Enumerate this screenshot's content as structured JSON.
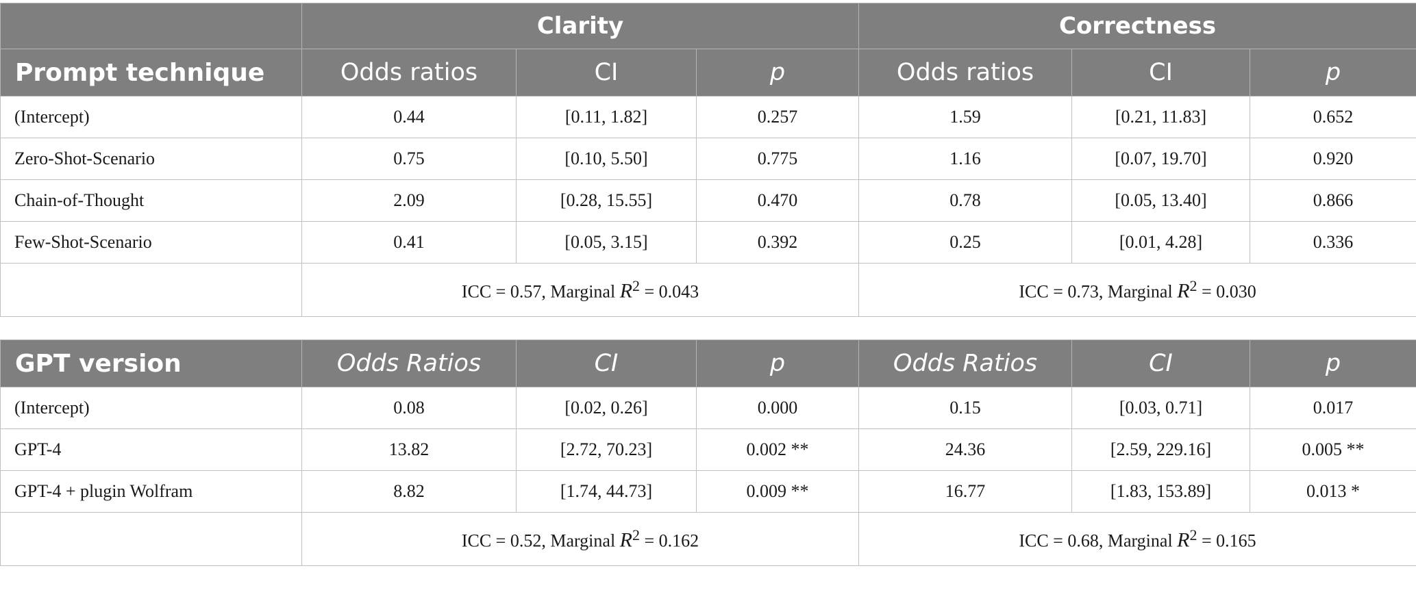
{
  "top": {
    "group_headers": [
      "Clarity",
      "Correctness"
    ],
    "first_header": "Prompt technique",
    "col_headers": [
      "Odds ratios",
      "CI",
      "p",
      "Odds ratios",
      "CI",
      "p"
    ],
    "rows": [
      {
        "label": "(Intercept)",
        "cells": [
          "0.44",
          "[0.11, 1.82]",
          "0.257",
          "1.59",
          "[0.21, 11.83]",
          "0.652"
        ]
      },
      {
        "label": "Zero-Shot-Scenario",
        "cells": [
          "0.75",
          "[0.10, 5.50]",
          "0.775",
          "1.16",
          "[0.07, 19.70]",
          "0.920"
        ]
      },
      {
        "label": "Chain-of-Thought",
        "cells": [
          "2.09",
          "[0.28, 15.55]",
          "0.470",
          "0.78",
          "[0.05, 13.40]",
          "0.866"
        ]
      },
      {
        "label": "Few-Shot-Scenario",
        "cells": [
          "0.41",
          "[0.05, 3.15]",
          "0.392",
          "0.25",
          "[0.01, 4.28]",
          "0.336"
        ]
      }
    ],
    "summary": [
      {
        "prefix": "ICC = 0.57, Marginal ",
        "r": "R",
        "exp": "2",
        "suffix": " = 0.043"
      },
      {
        "prefix": "ICC = 0.73, Marginal ",
        "r": "R",
        "exp": "2",
        "suffix": " = 0.030"
      }
    ]
  },
  "bottom": {
    "first_header": "GPT version",
    "col_headers": [
      "Odds Ratios",
      "CI",
      "p",
      "Odds Ratios",
      "CI",
      "p"
    ],
    "rows": [
      {
        "label": "(Intercept)",
        "cells": [
          "0.08",
          "[0.02, 0.26]",
          "0.000",
          "0.15",
          "[0.03, 0.71]",
          "0.017"
        ]
      },
      {
        "label": "GPT-4",
        "cells": [
          "13.82",
          "[2.72, 70.23]",
          "0.002 **",
          "24.36",
          "[2.59, 229.16]",
          "0.005 **"
        ]
      },
      {
        "label": "GPT-4 + plugin Wolfram",
        "cells": [
          "8.82",
          "[1.74, 44.73]",
          "0.009 **",
          "16.77",
          "[1.83, 153.89]",
          "0.013 *"
        ]
      }
    ],
    "summary": [
      {
        "prefix": "ICC = 0.52, Marginal ",
        "r": "R",
        "exp": "2",
        "suffix": " = 0.162"
      },
      {
        "prefix": "ICC = 0.68, Marginal ",
        "r": "R",
        "exp": "2",
        "suffix": " = 0.165"
      }
    ]
  }
}
